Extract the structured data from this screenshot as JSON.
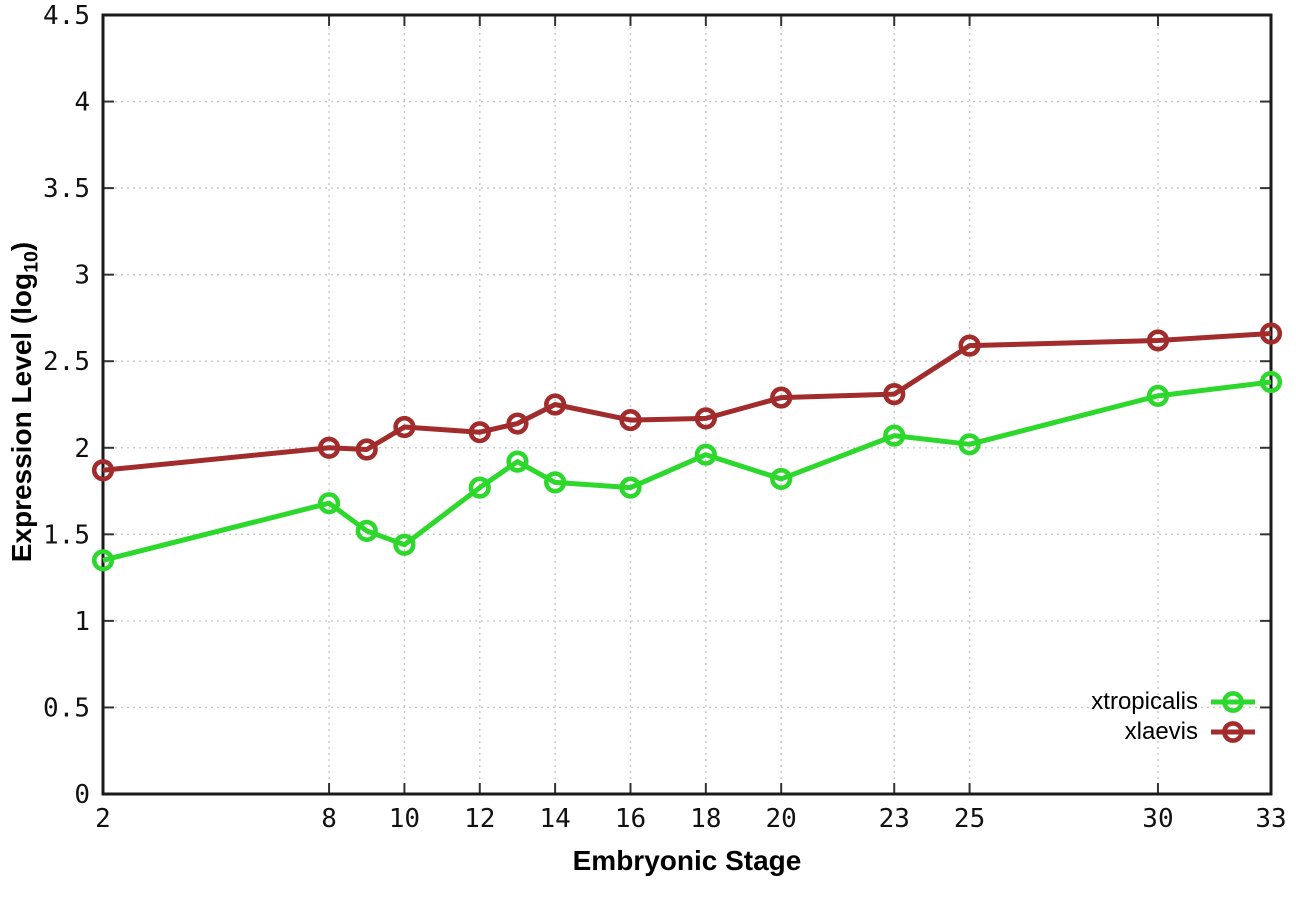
{
  "chart_data": {
    "type": "line",
    "title": "",
    "xlabel": "Embryonic Stage",
    "ylabel": "Expression Level (log10)",
    "ylabel_parts": {
      "prefix": "Expression Level (log",
      "sub": "10",
      "suffix": ")"
    },
    "xlim": [
      2,
      33
    ],
    "ylim": [
      0,
      4.5
    ],
    "x_ticks": [
      2,
      8,
      10,
      12,
      14,
      16,
      18,
      20,
      23,
      25,
      30,
      33
    ],
    "x_tick_labels": [
      "2",
      "8",
      "10",
      "12",
      "14",
      "16",
      "18",
      "20",
      "23",
      "25",
      "30",
      "33"
    ],
    "y_ticks": [
      0,
      0.5,
      1,
      1.5,
      2,
      2.5,
      3,
      3.5,
      4,
      4.5
    ],
    "y_tick_labels": [
      "0",
      "0.5",
      "1",
      "1.5",
      "2",
      "2.5",
      "3",
      "3.5",
      "4",
      "4.5"
    ],
    "grid": true,
    "legend_position": "bottom-right",
    "colors": {
      "xtropicalis": "#2bd82b",
      "xlaevis": "#a22b2b",
      "grid": "#c9c9c9",
      "border": "#1a1a1a",
      "tick_text": "#111111"
    },
    "x": [
      2,
      8,
      9,
      10,
      12,
      13,
      14,
      16,
      18,
      20,
      23,
      25,
      30,
      33
    ],
    "series": [
      {
        "name": "xtropicalis",
        "color": "#2bd82b",
        "values": [
          1.35,
          1.68,
          1.52,
          1.44,
          1.77,
          1.92,
          1.8,
          1.77,
          1.96,
          1.82,
          2.07,
          2.02,
          2.3,
          2.38
        ]
      },
      {
        "name": "xlaevis",
        "color": "#a22b2b",
        "values": [
          1.87,
          2.0,
          1.99,
          2.12,
          2.09,
          2.14,
          2.25,
          2.16,
          2.17,
          2.29,
          2.31,
          2.59,
          2.62,
          2.66
        ]
      }
    ]
  }
}
